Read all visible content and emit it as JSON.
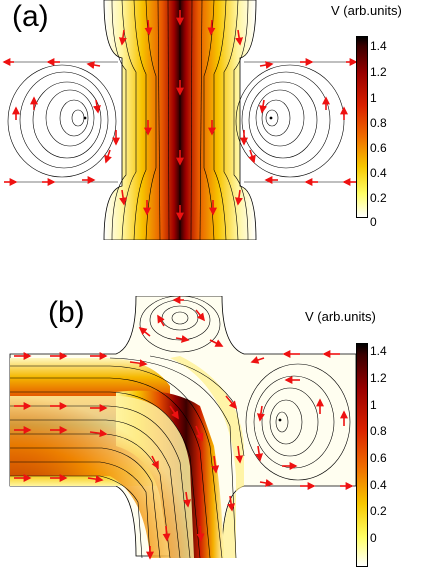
{
  "figure": {
    "panels": [
      {
        "label": "(a)",
        "colorbar": {
          "title": "V (arb.units)",
          "ticks": [
            "1.4",
            "1.2",
            "1",
            "0.8",
            "0.6",
            "0.4",
            "0.2",
            "0"
          ]
        }
      },
      {
        "label": "(b)",
        "colorbar": {
          "title": "V (arb.units)",
          "ticks": [
            "1.4",
            "1.2",
            "1",
            "0.8",
            "0.6",
            "0.4",
            "0.2",
            "0"
          ]
        }
      }
    ],
    "colors": {
      "streamline": "#000000",
      "arrow": "#ee1111",
      "field_low": "#ffffff",
      "field_mid": "#f0a000",
      "field_high": "#000000"
    }
  }
}
